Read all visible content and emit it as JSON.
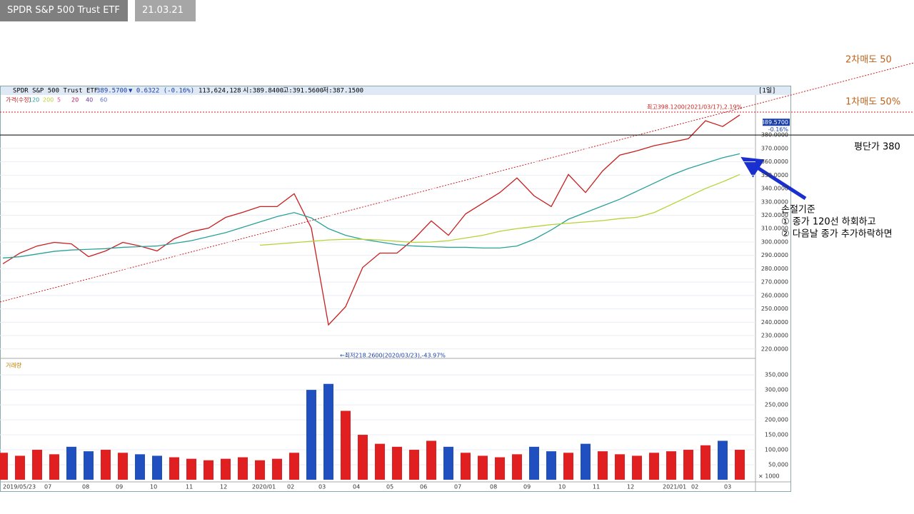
{
  "header": {
    "title": "SPDR S&P 500 Trust ETF",
    "date": "21.03.21일"
  },
  "chart_data": [
    {
      "type": "line",
      "info": {
        "name": "SPDR S&P 500 Trust ETF",
        "price": "389.5700",
        "change": "▼ 0.6322 (-0.16%)",
        "volume": "113,624,128",
        "open": "시:389.8400",
        "high": "고:391.5600",
        "low": "저:387.1500",
        "period": "[1일]"
      },
      "legend_label": "가격(수정)",
      "legend_other": [
        {
          "name": "5",
          "color": "#e0409a"
        },
        {
          "name": "20",
          "color": "#b01060"
        },
        {
          "name": "40",
          "color": "#7030a0"
        },
        {
          "name": "60",
          "color": "#6070c0"
        }
      ],
      "series": [
        {
          "name": "가격(수정)",
          "color": "#c81e1e",
          "values": [
            283.7,
            291.7,
            297,
            299.7,
            298.6,
            289,
            293.3,
            299.7,
            297,
            293.3,
            302.4,
            307.7,
            310.4,
            318.4,
            322.2,
            326.5,
            326.5,
            336.1,
            310.4,
            238,
            251.6,
            281,
            291.7,
            291.7,
            302.4,
            315.8,
            305,
            321,
            329,
            337,
            347.9,
            334.5,
            326.5,
            350.5,
            337,
            353.2,
            365,
            368.2,
            372,
            374.6,
            377.3,
            390.7,
            386.4,
            395
          ]
        },
        {
          "name": "120",
          "color": "#2aa198",
          "values": [
            288,
            289,
            291,
            293,
            294,
            294.5,
            295,
            296,
            296.5,
            297,
            299,
            301,
            304,
            307,
            311,
            315,
            319,
            322,
            318,
            310,
            305,
            302,
            300,
            298,
            297,
            296.5,
            296,
            296,
            295.5,
            295.5,
            297,
            302,
            309,
            317,
            322,
            327,
            332,
            338,
            344,
            350,
            355,
            359,
            363,
            366
          ]
        },
        {
          "name": "200",
          "color": "#b5d334",
          "values": [
            null,
            null,
            null,
            null,
            null,
            null,
            null,
            null,
            null,
            null,
            null,
            null,
            null,
            null,
            null,
            297.6,
            298.5,
            299.5,
            300.5,
            301.5,
            302,
            302,
            301.5,
            300.5,
            299.7,
            300,
            301,
            303,
            305,
            308,
            310,
            311.5,
            313,
            314,
            315,
            316,
            317.5,
            318.5,
            322,
            328,
            334,
            340,
            345,
            350.5
          ]
        }
      ],
      "ylim": [
        214,
        410
      ],
      "yticks": [
        {
          "value": 220,
          "label": "220.0000"
        },
        {
          "value": 230,
          "label": "230.0000"
        },
        {
          "value": 240,
          "label": "240.0000"
        },
        {
          "value": 250,
          "label": "250.0000"
        },
        {
          "value": 260,
          "label": "260.0000"
        },
        {
          "value": 270,
          "label": "270.0000"
        },
        {
          "value": 280,
          "label": "280.0000"
        },
        {
          "value": 290,
          "label": "290.0000"
        },
        {
          "value": 300,
          "label": "300.0000"
        },
        {
          "value": 310,
          "label": "310.0000"
        },
        {
          "value": 320,
          "label": "320.0000"
        },
        {
          "value": 330,
          "label": "330.0000"
        },
        {
          "value": 340,
          "label": "340.0000"
        },
        {
          "value": 350,
          "label": "350.0000"
        },
        {
          "value": 360,
          "label": "360.0000"
        },
        {
          "value": 370,
          "label": "370.0000"
        },
        {
          "value": 380,
          "label": "380.0000"
        }
      ],
      "last": {
        "value": 389.57,
        "label": "389.5700",
        "change": "-0.16%"
      },
      "high_note": "최고398.1200(2021/03/17),2.19%",
      "low_note": "←최저218.2600(2020/03/23),-43.97%",
      "annotations": {
        "sell2": "2차매도 50",
        "sell1": "1차매도 50%",
        "avg": {
          "value": 380,
          "label": "평단가 380"
        },
        "stop_title": "손절기준",
        "stop_1": "① 종가 120선 하회하고",
        "stop_2": "② 다음날 종가 추가하락하면"
      }
    },
    {
      "type": "bar",
      "legend_label": "거래량",
      "values": [
        90000,
        80000,
        100000,
        85000,
        110000,
        95000,
        100000,
        90000,
        85000,
        80000,
        75000,
        70000,
        65000,
        70000,
        75000,
        65000,
        70000,
        90000,
        300000,
        320000,
        230000,
        150000,
        120000,
        110000,
        100000,
        130000,
        110000,
        90000,
        80000,
        75000,
        85000,
        110000,
        95000,
        90000,
        120000,
        95000,
        85000,
        80000,
        90000,
        95000,
        100000,
        115000,
        130000,
        100000
      ],
      "ylim": [
        0,
        398000
      ],
      "yticks": [
        {
          "value": 50000,
          "label": "50,000"
        },
        {
          "value": 100000,
          "label": "100,000"
        },
        {
          "value": 150000,
          "label": "150,000"
        },
        {
          "value": 200000,
          "label": "200,000"
        },
        {
          "value": 250000,
          "label": "250,000"
        },
        {
          "value": 300000,
          "label": "300,000"
        },
        {
          "value": 350000,
          "label": "350,000"
        }
      ],
      "unit": "× 1000",
      "xtick_labels": [
        "2019/05/23",
        "07",
        "08",
        "09",
        "10",
        "11",
        "12",
        "2020/01",
        "02",
        "03",
        "04",
        "05",
        "06",
        "07",
        "08",
        "09",
        "10",
        "11",
        "12",
        "2021/01",
        "02",
        "03"
      ]
    }
  ]
}
